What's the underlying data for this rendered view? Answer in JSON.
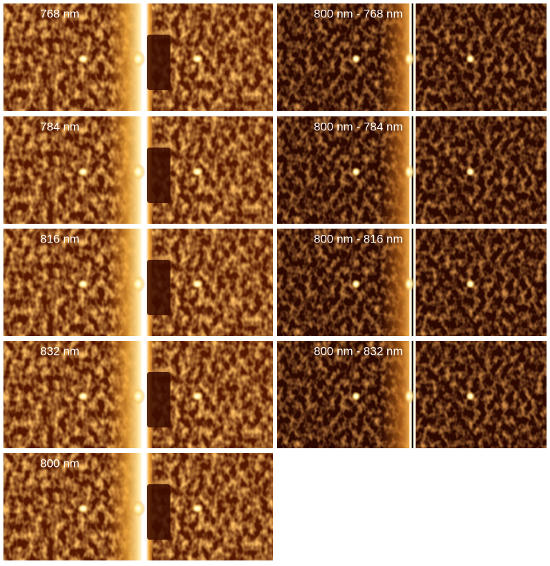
{
  "left_column": [
    {
      "label": "768 nm"
    },
    {
      "label": "784 nm"
    },
    {
      "label": "816 nm"
    },
    {
      "label": "832 nm"
    },
    {
      "label": "800 nm"
    }
  ],
  "right_column": [
    {
      "label": "800 nm - 768 nm"
    },
    {
      "label": "800 nm - 784 nm"
    },
    {
      "label": "800 nm - 816 nm"
    },
    {
      "label": "800 nm - 832 nm"
    }
  ]
}
